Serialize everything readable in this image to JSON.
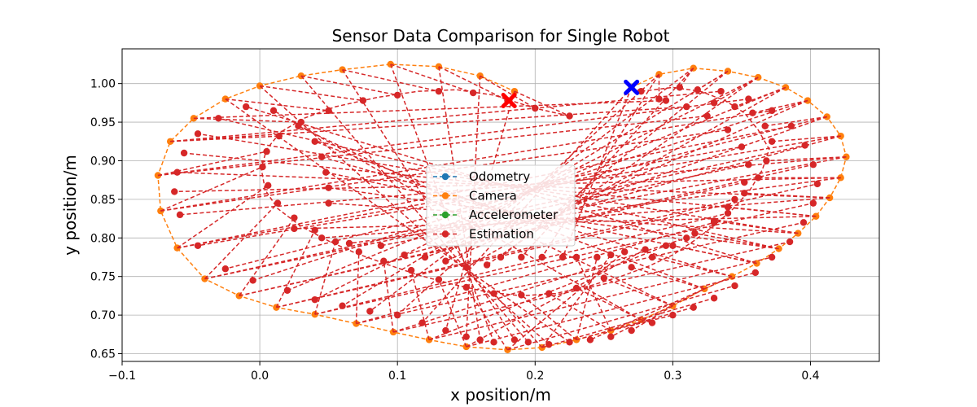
{
  "chart_data": {
    "type": "line",
    "title": "Sensor Data Comparison for Single Robot",
    "xlabel": "x position/m",
    "ylabel": "y position/m",
    "xlim": [
      -0.1,
      0.45
    ],
    "ylim": [
      0.64,
      1.045
    ],
    "xticks": [
      -0.1,
      0.0,
      0.1,
      0.2,
      0.3,
      0.4
    ],
    "xtick_labels": [
      "−0.1",
      "0.0",
      "0.1",
      "0.2",
      "0.3",
      "0.4"
    ],
    "yticks": [
      0.65,
      0.7,
      0.75,
      0.8,
      0.85,
      0.9,
      0.95,
      1.0
    ],
    "ytick_labels": [
      "0.65",
      "0.70",
      "0.75",
      "0.80",
      "0.85",
      "0.90",
      "0.95",
      "1.00"
    ],
    "grid": true,
    "legend_position": "center",
    "series": [
      {
        "name": "Odometry",
        "color": "#1f77b4",
        "style": "dashed-marker",
        "points": []
      },
      {
        "name": "Camera",
        "color": "#ff7f0e",
        "style": "dashed-marker",
        "points": [
          [
            0.27,
            0.995
          ],
          [
            0.29,
            1.012
          ],
          [
            0.315,
            1.02
          ],
          [
            0.34,
            1.016
          ],
          [
            0.362,
            1.008
          ],
          [
            0.382,
            0.995
          ],
          [
            0.398,
            0.978
          ],
          [
            0.412,
            0.957
          ],
          [
            0.422,
            0.932
          ],
          [
            0.426,
            0.905
          ],
          [
            0.422,
            0.878
          ],
          [
            0.414,
            0.852
          ],
          [
            0.404,
            0.828
          ],
          [
            0.391,
            0.806
          ],
          [
            0.377,
            0.786
          ],
          [
            0.361,
            0.767
          ],
          [
            0.343,
            0.75
          ],
          [
            0.323,
            0.734
          ],
          [
            0.3,
            0.712
          ],
          [
            0.277,
            0.694
          ],
          [
            0.255,
            0.68
          ],
          [
            0.23,
            0.668
          ],
          [
            0.205,
            0.658
          ],
          [
            0.18,
            0.655
          ],
          [
            0.15,
            0.659
          ],
          [
            0.123,
            0.668
          ],
          [
            0.097,
            0.678
          ],
          [
            0.07,
            0.689
          ],
          [
            0.04,
            0.701
          ],
          [
            0.012,
            0.71
          ],
          [
            -0.015,
            0.725
          ],
          [
            -0.04,
            0.747
          ],
          [
            -0.06,
            0.787
          ],
          [
            -0.072,
            0.835
          ],
          [
            -0.074,
            0.881
          ],
          [
            -0.065,
            0.925
          ],
          [
            -0.048,
            0.955
          ],
          [
            -0.025,
            0.98
          ],
          [
            0.0,
            0.997
          ],
          [
            0.03,
            1.01
          ],
          [
            0.06,
            1.018
          ],
          [
            0.095,
            1.025
          ],
          [
            0.13,
            1.022
          ],
          [
            0.16,
            1.01
          ],
          [
            0.185,
            0.99
          ]
        ]
      },
      {
        "name": "Accelerometer",
        "color": "#2ca02c",
        "style": "dashed-marker",
        "points": []
      },
      {
        "name": "Estimation",
        "color": "#d62728",
        "style": "dashed-marker",
        "points": [
          [
            0.277,
            0.99
          ],
          [
            0.3,
            0.995
          ],
          [
            0.32,
            0.99
          ],
          [
            0.338,
            0.978
          ],
          [
            0.352,
            0.962
          ],
          [
            0.362,
            0.94
          ],
          [
            0.37,
            0.915
          ],
          [
            0.365,
            0.888
          ],
          [
            0.356,
            0.862
          ],
          [
            0.344,
            0.838
          ],
          [
            0.33,
            0.816
          ],
          [
            0.316,
            0.797
          ],
          [
            0.3,
            0.778
          ],
          [
            0.282,
            0.763
          ],
          [
            0.262,
            0.75
          ],
          [
            0.24,
            0.738
          ],
          [
            0.215,
            0.728
          ],
          [
            0.19,
            0.725
          ],
          [
            0.165,
            0.73
          ],
          [
            0.14,
            0.74
          ],
          [
            0.115,
            0.752
          ],
          [
            0.092,
            0.766
          ],
          [
            0.07,
            0.78
          ],
          [
            0.05,
            0.796
          ],
          [
            0.03,
            0.815
          ],
          [
            0.013,
            0.838
          ],
          [
            0.004,
            0.862
          ],
          [
            0.001,
            0.89
          ],
          [
            0.005,
            0.915
          ],
          [
            0.015,
            0.937
          ],
          [
            0.032,
            0.955
          ],
          [
            0.055,
            0.97
          ],
          [
            0.085,
            0.982
          ],
          [
            0.115,
            0.99
          ],
          [
            0.143,
            0.992
          ],
          [
            0.17,
            0.985
          ],
          [
            0.2,
            0.968
          ],
          [
            0.225,
            0.958
          ]
        ],
        "markers": [
          [
            0.277,
            0.99
          ],
          [
            0.29,
            0.98
          ],
          [
            0.305,
            0.995
          ],
          [
            0.318,
            0.992
          ],
          [
            0.33,
            0.975
          ],
          [
            0.345,
            0.97
          ],
          [
            0.358,
            0.962
          ],
          [
            0.367,
            0.945
          ],
          [
            0.372,
            0.925
          ],
          [
            0.368,
            0.9
          ],
          [
            0.362,
            0.878
          ],
          [
            0.352,
            0.858
          ],
          [
            0.34,
            0.84
          ],
          [
            0.33,
            0.822
          ],
          [
            0.316,
            0.806
          ],
          [
            0.3,
            0.79
          ],
          [
            0.285,
            0.775
          ],
          [
            0.27,
            0.762
          ],
          [
            0.25,
            0.748
          ],
          [
            0.23,
            0.735
          ],
          [
            0.21,
            0.728
          ],
          [
            0.19,
            0.726
          ],
          [
            0.17,
            0.728
          ],
          [
            0.15,
            0.736
          ],
          [
            0.13,
            0.746
          ],
          [
            0.11,
            0.758
          ],
          [
            0.09,
            0.77
          ],
          [
            0.072,
            0.782
          ],
          [
            0.055,
            0.795
          ],
          [
            0.04,
            0.81
          ],
          [
            0.025,
            0.826
          ],
          [
            0.013,
            0.845
          ],
          [
            0.006,
            0.868
          ],
          [
            0.002,
            0.892
          ],
          [
            0.005,
            0.912
          ],
          [
            0.014,
            0.932
          ],
          [
            0.03,
            0.95
          ],
          [
            0.05,
            0.965
          ],
          [
            0.075,
            0.978
          ],
          [
            0.1,
            0.985
          ],
          [
            0.13,
            0.99
          ],
          [
            0.155,
            0.988
          ],
          [
            0.18,
            0.978
          ],
          [
            0.2,
            0.968
          ],
          [
            0.225,
            0.958
          ],
          [
            0.22,
            0.775
          ],
          [
            0.205,
            0.775
          ],
          [
            0.19,
            0.775
          ],
          [
            0.175,
            0.775
          ],
          [
            0.165,
            0.765
          ],
          [
            0.15,
            0.762
          ],
          [
            0.135,
            0.77
          ],
          [
            0.12,
            0.775
          ],
          [
            0.105,
            0.778
          ],
          [
            0.088,
            0.79
          ],
          [
            0.065,
            0.793
          ],
          [
            0.045,
            0.8
          ],
          [
            0.025,
            0.812
          ],
          [
            0.05,
            0.845
          ],
          [
            0.05,
            0.865
          ],
          [
            0.048,
            0.885
          ],
          [
            0.045,
            0.905
          ],
          [
            0.04,
            0.925
          ],
          [
            0.028,
            0.945
          ],
          [
            0.01,
            0.965
          ],
          [
            0.23,
            0.775
          ],
          [
            0.245,
            0.775
          ],
          [
            0.255,
            0.778
          ],
          [
            0.265,
            0.782
          ],
          [
            0.28,
            0.785
          ],
          [
            0.295,
            0.79
          ],
          [
            0.31,
            0.8
          ],
          [
            0.33,
            0.82
          ],
          [
            0.34,
            0.832
          ],
          [
            0.345,
            0.85
          ],
          [
            0.352,
            0.872
          ],
          [
            0.355,
            0.895
          ],
          [
            0.35,
            0.918
          ],
          [
            0.34,
            0.94
          ],
          [
            0.325,
            0.958
          ],
          [
            0.31,
            0.97
          ],
          [
            0.295,
            0.978
          ],
          [
            0.225,
            0.665
          ],
          [
            0.21,
            0.662
          ],
          [
            0.195,
            0.665
          ],
          [
            0.185,
            0.668
          ],
          [
            0.17,
            0.665
          ],
          [
            0.16,
            0.668
          ],
          [
            0.15,
            0.672
          ],
          [
            0.135,
            0.68
          ],
          [
            0.118,
            0.69
          ],
          [
            0.1,
            0.7
          ],
          [
            0.08,
            0.705
          ],
          [
            0.06,
            0.712
          ],
          [
            0.04,
            0.72
          ],
          [
            0.02,
            0.732
          ],
          [
            -0.005,
            0.745
          ],
          [
            -0.025,
            0.76
          ],
          [
            -0.045,
            0.79
          ],
          [
            -0.058,
            0.83
          ],
          [
            -0.062,
            0.86
          ],
          [
            -0.06,
            0.885
          ],
          [
            -0.055,
            0.91
          ],
          [
            -0.045,
            0.935
          ],
          [
            -0.03,
            0.955
          ],
          [
            -0.01,
            0.97
          ],
          [
            0.24,
            0.668
          ],
          [
            0.255,
            0.672
          ],
          [
            0.27,
            0.68
          ],
          [
            0.285,
            0.69
          ],
          [
            0.3,
            0.7
          ],
          [
            0.315,
            0.71
          ],
          [
            0.33,
            0.722
          ],
          [
            0.345,
            0.738
          ],
          [
            0.36,
            0.755
          ],
          [
            0.372,
            0.775
          ],
          [
            0.385,
            0.795
          ],
          [
            0.395,
            0.82
          ],
          [
            0.402,
            0.845
          ],
          [
            0.405,
            0.87
          ],
          [
            0.402,
            0.895
          ],
          [
            0.396,
            0.92
          ],
          [
            0.386,
            0.945
          ],
          [
            0.372,
            0.965
          ],
          [
            0.355,
            0.98
          ],
          [
            0.335,
            0.99
          ]
        ]
      }
    ],
    "start_marker": {
      "x": 0.27,
      "y": 0.995,
      "color": "#0000ff",
      "label": "start"
    },
    "end_marker": {
      "x": 0.181,
      "y": 0.978,
      "color": "#ff0000",
      "label": "end"
    }
  }
}
